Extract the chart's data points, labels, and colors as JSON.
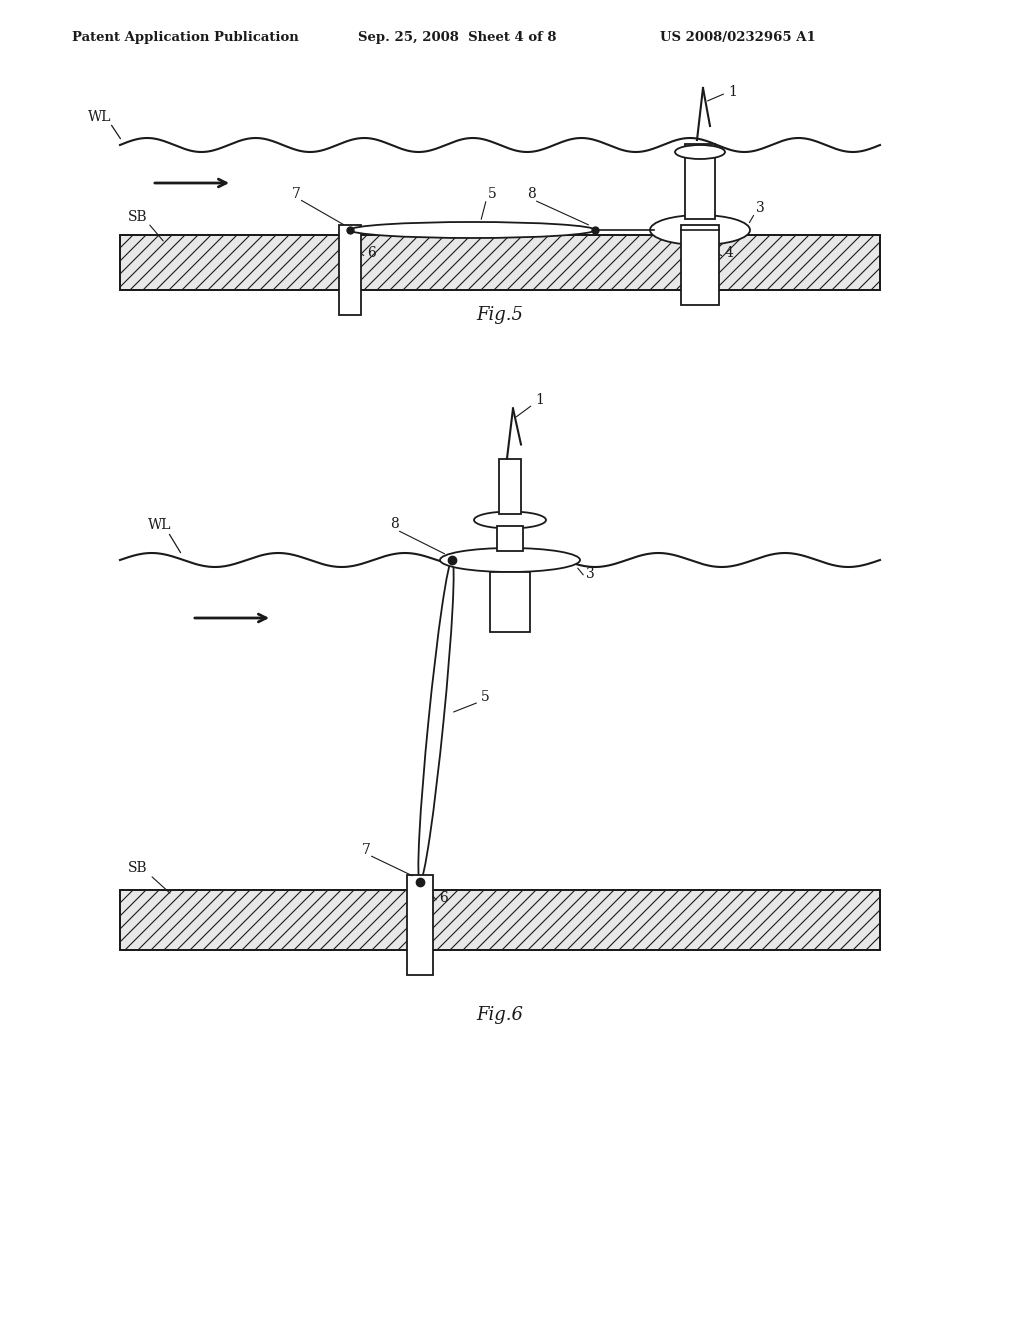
{
  "bg_color": "#ffffff",
  "line_color": "#1a1a1a",
  "header_left": "Patent Application Publication",
  "header_mid": "Sep. 25, 2008  Sheet 4 of 8",
  "header_right": "US 2008/0232965 A1",
  "fig5_label": "Fig.5",
  "fig6_label": "Fig.6",
  "fig_width": 1024,
  "fig_height": 1320
}
